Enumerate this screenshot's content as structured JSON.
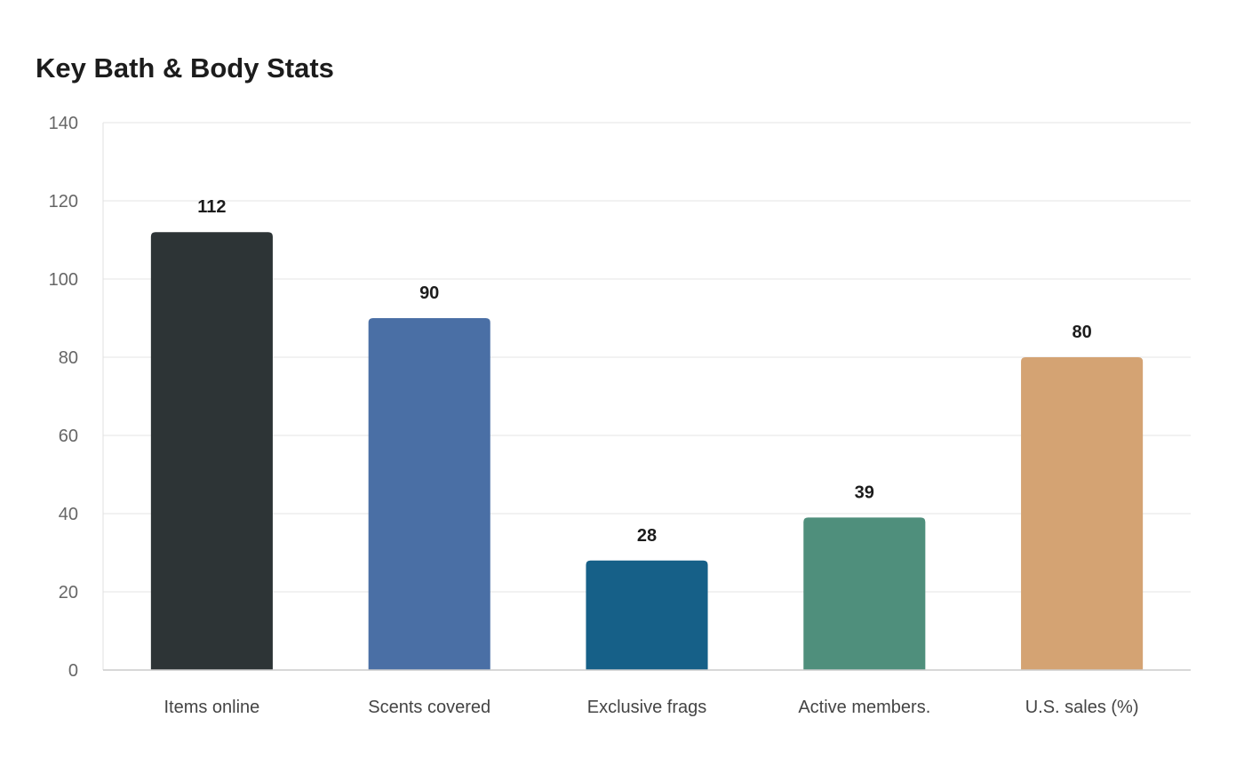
{
  "chart_data": {
    "type": "bar",
    "title": "Key Bath & Body Stats",
    "xlabel": "",
    "ylabel": "",
    "categories": [
      "Items online",
      "Scents covered",
      "Exclusive frags",
      "Active members.",
      "U.S. sales (%)"
    ],
    "values": [
      112,
      90,
      28,
      39,
      80
    ],
    "colors": [
      "#2d3436",
      "#4a6fa5",
      "#166088",
      "#4f8f7c",
      "#d4a373"
    ],
    "ylim": [
      0,
      140
    ],
    "yticks": [
      0,
      20,
      40,
      60,
      80,
      100,
      120,
      140
    ],
    "grid": true,
    "legend": "none",
    "data_labels": true
  }
}
